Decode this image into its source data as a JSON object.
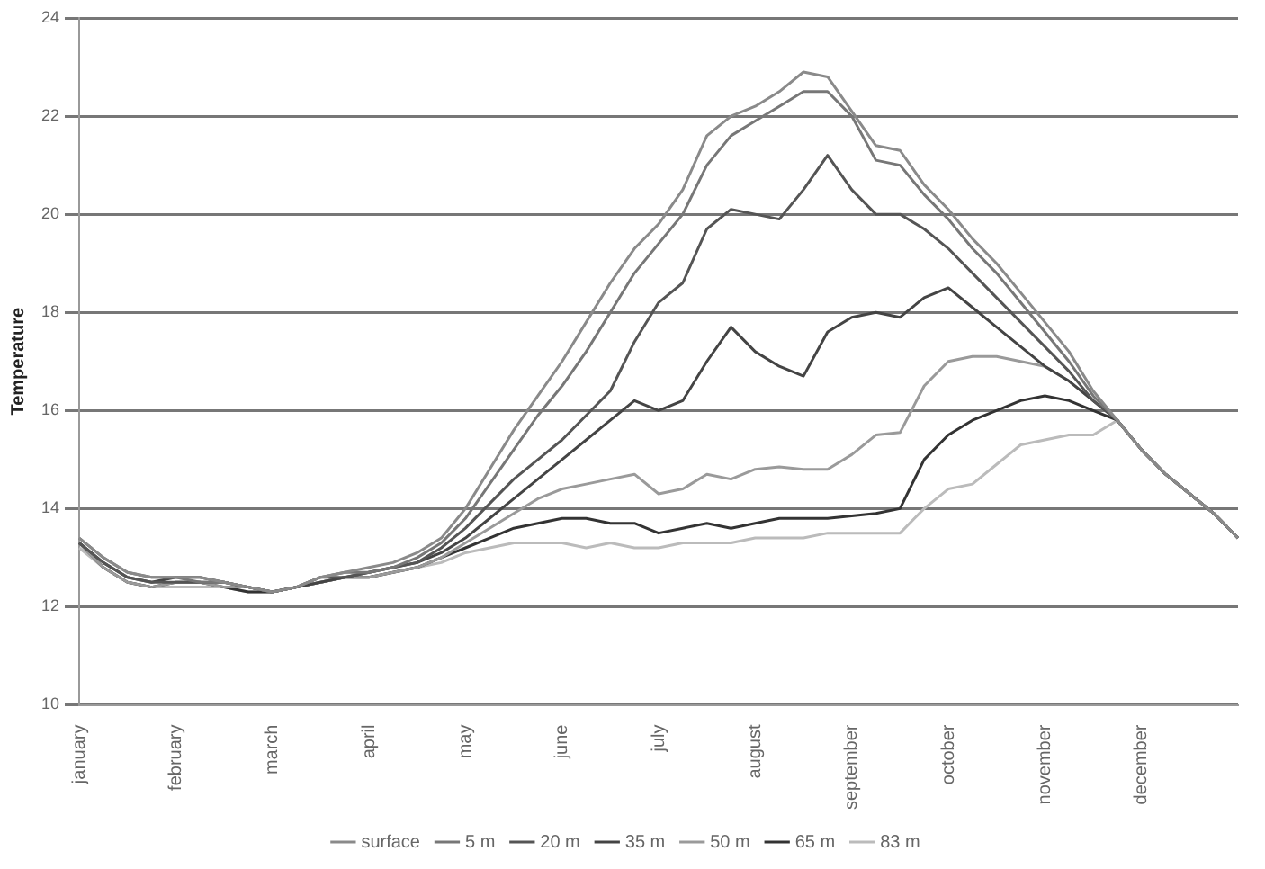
{
  "chart_data": {
    "type": "line",
    "ylabel": "Temperature",
    "categories": [
      "january",
      null,
      null,
      null,
      "february",
      null,
      null,
      null,
      "march",
      null,
      null,
      null,
      "april",
      null,
      null,
      null,
      "may",
      null,
      null,
      null,
      "june",
      null,
      null,
      null,
      "july",
      null,
      null,
      null,
      "august",
      null,
      null,
      null,
      "september",
      null,
      null,
      null,
      "october",
      null,
      null,
      null,
      "november",
      null,
      null,
      null,
      "december",
      null,
      null,
      null,
      null
    ],
    "ylim": [
      10,
      24
    ],
    "yticks": [
      10,
      12,
      14,
      16,
      18,
      20,
      22,
      24
    ],
    "grid": "y",
    "legend": "bottom",
    "marker": "none",
    "line_style": "solid",
    "series": [
      {
        "name": "surface",
        "color": "#8a8a8a",
        "values": [
          13.4,
          13.0,
          12.7,
          12.6,
          12.6,
          12.6,
          12.5,
          12.4,
          12.3,
          12.4,
          12.6,
          12.7,
          12.8,
          12.9,
          13.1,
          13.4,
          14.0,
          14.8,
          15.6,
          16.3,
          17.0,
          17.8,
          18.6,
          19.3,
          19.8,
          20.5,
          21.6,
          22.0,
          22.2,
          22.5,
          22.9,
          22.8,
          22.1,
          21.4,
          21.3,
          20.6,
          20.1,
          19.5,
          19.0,
          18.4,
          17.8,
          17.2,
          16.4,
          15.8,
          15.2,
          14.7,
          14.3,
          13.9,
          13.4
        ]
      },
      {
        "name": "5 m",
        "color": "#777777",
        "values": [
          13.4,
          13.0,
          12.7,
          12.6,
          12.6,
          12.5,
          12.5,
          12.4,
          12.3,
          12.4,
          12.6,
          12.7,
          12.7,
          12.8,
          13.0,
          13.3,
          13.8,
          14.5,
          15.2,
          15.9,
          16.5,
          17.2,
          18.0,
          18.8,
          19.4,
          20.0,
          21.0,
          21.6,
          21.9,
          22.2,
          22.5,
          22.5,
          22.0,
          21.1,
          21.0,
          20.4,
          19.9,
          19.3,
          18.8,
          18.2,
          17.6,
          17.0,
          16.3,
          15.8,
          15.2,
          14.7,
          14.3,
          13.9,
          13.4
        ]
      },
      {
        "name": "20 m",
        "color": "#555555",
        "values": [
          13.3,
          12.9,
          12.6,
          12.5,
          12.5,
          12.5,
          12.5,
          12.4,
          12.3,
          12.4,
          12.6,
          12.6,
          12.7,
          12.8,
          12.9,
          13.2,
          13.6,
          14.1,
          14.6,
          15.0,
          15.4,
          15.9,
          16.4,
          17.4,
          18.2,
          18.6,
          19.7,
          20.1,
          20.0,
          19.9,
          20.5,
          21.2,
          20.5,
          20.0,
          20.0,
          19.7,
          19.3,
          18.8,
          18.3,
          17.8,
          17.3,
          16.8,
          16.2,
          15.8,
          15.2,
          14.7,
          14.3,
          13.9,
          13.4
        ]
      },
      {
        "name": "35 m",
        "color": "#444444",
        "values": [
          13.3,
          12.9,
          12.6,
          12.5,
          12.6,
          12.6,
          12.5,
          12.4,
          12.3,
          12.4,
          12.5,
          12.6,
          12.7,
          12.8,
          12.9,
          13.1,
          13.4,
          13.8,
          14.2,
          14.6,
          15.0,
          15.4,
          15.8,
          16.2,
          16.0,
          16.2,
          17.0,
          17.7,
          17.2,
          16.9,
          16.7,
          17.6,
          17.9,
          18.0,
          17.9,
          18.3,
          18.5,
          18.1,
          17.7,
          17.3,
          16.9,
          16.6,
          16.2,
          15.8,
          15.2,
          14.7,
          14.3,
          13.9,
          13.4
        ]
      },
      {
        "name": "50 m",
        "color": "#9a9a9a",
        "values": [
          13.3,
          12.8,
          12.5,
          12.4,
          12.5,
          12.5,
          12.4,
          12.4,
          12.3,
          12.4,
          12.5,
          12.6,
          12.6,
          12.7,
          12.8,
          13.0,
          13.3,
          13.6,
          13.9,
          14.2,
          14.4,
          14.5,
          14.6,
          14.7,
          14.3,
          14.4,
          14.7,
          14.6,
          14.8,
          14.85,
          14.8,
          14.8,
          15.1,
          15.5,
          15.55,
          16.5,
          17.0,
          17.1,
          17.1,
          17.0,
          16.9,
          16.6,
          16.2,
          15.8,
          15.2,
          14.7,
          14.3,
          13.9,
          13.4
        ]
      },
      {
        "name": "65 m",
        "color": "#333333",
        "values": [
          13.3,
          12.8,
          12.5,
          12.4,
          12.5,
          12.5,
          12.4,
          12.3,
          12.3,
          12.4,
          12.5,
          12.6,
          12.6,
          12.7,
          12.8,
          13.0,
          13.2,
          13.4,
          13.6,
          13.7,
          13.8,
          13.8,
          13.7,
          13.7,
          13.5,
          13.6,
          13.7,
          13.6,
          13.7,
          13.8,
          13.8,
          13.8,
          13.85,
          13.9,
          14.0,
          15.0,
          15.5,
          15.8,
          16.0,
          16.2,
          16.3,
          16.2,
          16.0,
          15.8,
          15.2,
          14.7,
          14.3,
          13.9,
          13.4
        ]
      },
      {
        "name": "83 m",
        "color": "#bbbbbb",
        "values": [
          13.2,
          12.8,
          12.5,
          12.4,
          12.4,
          12.4,
          12.4,
          12.3,
          12.3,
          12.4,
          12.5,
          12.6,
          12.6,
          12.7,
          12.8,
          12.9,
          13.1,
          13.2,
          13.3,
          13.3,
          13.3,
          13.2,
          13.3,
          13.2,
          13.2,
          13.3,
          13.3,
          13.3,
          13.4,
          13.4,
          13.4,
          13.5,
          13.5,
          13.5,
          13.5,
          14.0,
          14.4,
          14.5,
          14.9,
          15.3,
          15.4,
          15.5,
          15.5,
          15.8,
          15.2,
          14.7,
          14.3,
          13.9,
          13.4
        ]
      }
    ]
  }
}
